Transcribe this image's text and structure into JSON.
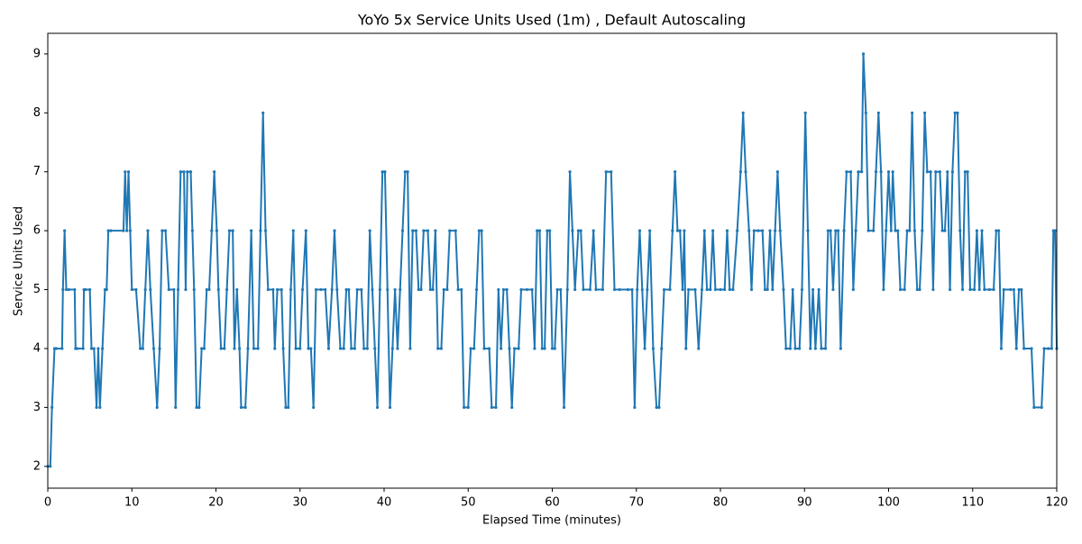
{
  "chart_data": {
    "type": "line",
    "title": "YoYo 5x Service Units Used (1m) , Default Autoscaling",
    "x_label": "Elapsed Time (minutes)",
    "y_label": "Service Units Used",
    "xlim": [
      0,
      120
    ],
    "ylim": [
      1.63,
      9.35
    ],
    "xticks": [
      0,
      10,
      20,
      30,
      40,
      50,
      60,
      70,
      80,
      90,
      100,
      110,
      120
    ],
    "yticks": [
      2,
      3,
      4,
      5,
      6,
      7,
      8,
      9
    ],
    "grid": false,
    "x": [
      0,
      0.3,
      0.5,
      0.8,
      1,
      1.7,
      1.8,
      2,
      2.2,
      2.5,
      3.2,
      3.3,
      3.5,
      4.2,
      4.3,
      4.5,
      5,
      5.2,
      5.5,
      5.8,
      6,
      6.2,
      6.5,
      6.8,
      7,
      7.2,
      7.5,
      9,
      9.2,
      9.4,
      9.6,
      9.8,
      10,
      10.5,
      11,
      11.3,
      11.6,
      11.9,
      12.2,
      12.6,
      13,
      13.3,
      13.6,
      14,
      14.4,
      15,
      15.2,
      15.5,
      15.8,
      16.2,
      16.4,
      16.6,
      17,
      17.2,
      17.4,
      17.7,
      18,
      18.3,
      18.6,
      18.9,
      19.2,
      19.5,
      19.8,
      20.1,
      20.3,
      20.6,
      21,
      21.3,
      21.6,
      22,
      22.2,
      22.5,
      22.8,
      23,
      23.5,
      23.8,
      24.2,
      24.5,
      25,
      25.3,
      25.6,
      25.9,
      26.2,
      26.8,
      27,
      27.3,
      27.8,
      28,
      28.3,
      28.6,
      28.9,
      29.2,
      29.5,
      30,
      30.3,
      30.7,
      31,
      31.3,
      31.6,
      31.9,
      32.5,
      33,
      33.4,
      33.8,
      34.1,
      34.4,
      34.8,
      35.2,
      35.5,
      35.8,
      36.1,
      36.5,
      36.8,
      37.3,
      37.6,
      38,
      38.3,
      38.6,
      38.9,
      39.2,
      39.5,
      39.8,
      40.1,
      40.4,
      40.7,
      41,
      41.3,
      41.6,
      41.9,
      42.2,
      42.5,
      42.8,
      43.1,
      43.4,
      43.8,
      44.1,
      44.4,
      44.7,
      45.2,
      45.5,
      45.8,
      46.1,
      46.4,
      46.8,
      47.1,
      47.5,
      47.8,
      48.5,
      48.8,
      49.2,
      49.5,
      50,
      50.3,
      50.7,
      51,
      51.3,
      51.6,
      51.9,
      52.5,
      52.8,
      53.3,
      53.6,
      53.9,
      54.2,
      54.6,
      54.9,
      55.2,
      55.5,
      56,
      56.3,
      57,
      57.6,
      57.9,
      58.2,
      58.5,
      58.8,
      59.1,
      59.4,
      59.7,
      60,
      60.3,
      60.6,
      61,
      61.4,
      61.8,
      62.1,
      62.4,
      62.7,
      63.1,
      63.4,
      63.7,
      64.5,
      64.9,
      65.2,
      66,
      66.4,
      67,
      67.4,
      68,
      69,
      69.5,
      69.8,
      70.1,
      70.4,
      70.7,
      71,
      71.3,
      71.6,
      72,
      72.4,
      72.7,
      73,
      73.3,
      74,
      74.3,
      74.6,
      74.9,
      75.2,
      75.5,
      75.7,
      75.9,
      76.2,
      77,
      77.4,
      77.8,
      78.1,
      78.4,
      78.8,
      79.1,
      79.4,
      80,
      80.5,
      80.8,
      81.1,
      81.5,
      82,
      82.4,
      82.7,
      83,
      83.4,
      83.7,
      84,
      84.5,
      85,
      85.3,
      85.6,
      85.9,
      86.2,
      86.5,
      86.8,
      87.1,
      87.5,
      87.8,
      88.3,
      88.6,
      88.9,
      89.4,
      89.7,
      90.1,
      90.4,
      90.7,
      91,
      91.3,
      91.7,
      92,
      92.5,
      92.8,
      93.1,
      93.4,
      93.7,
      94,
      94.3,
      94.7,
      95,
      95.5,
      95.8,
      96.1,
      96.4,
      96.8,
      97,
      97.3,
      97.6,
      98.2,
      98.5,
      98.8,
      99.1,
      99.4,
      99.7,
      100,
      100.3,
      100.5,
      100.8,
      101.1,
      101.4,
      101.9,
      102.2,
      102.5,
      102.8,
      103.1,
      103.4,
      103.7,
      104,
      104.3,
      104.6,
      105,
      105.3,
      105.6,
      106.1,
      106.4,
      106.7,
      107,
      107.3,
      107.6,
      107.9,
      108.2,
      108.5,
      108.8,
      109.1,
      109.4,
      109.7,
      110.2,
      110.5,
      110.8,
      111.1,
      111.4,
      112,
      112.5,
      112.8,
      113.1,
      113.4,
      113.7,
      114.5,
      114.9,
      115.2,
      115.5,
      115.8,
      116.1,
      117,
      117.3,
      118.2,
      118.5,
      119,
      119.4,
      119.6,
      119.8,
      120
    ],
    "series": [
      {
        "color": "#1f77b4",
        "values": [
          2,
          2,
          3,
          4,
          4,
          4,
          5,
          6,
          5,
          5,
          5,
          4,
          4,
          4,
          5,
          5,
          5,
          4,
          4,
          3,
          4,
          3,
          4,
          5,
          5,
          6,
          6,
          6,
          7,
          6,
          7,
          6,
          5,
          5,
          4,
          4,
          5,
          6,
          5,
          4,
          3,
          4,
          6,
          6,
          5,
          5,
          3,
          5,
          7,
          7,
          5,
          7,
          7,
          6,
          5,
          3,
          3,
          4,
          4,
          5,
          5,
          6,
          7,
          6,
          5,
          4,
          4,
          5,
          6,
          6,
          4,
          5,
          4,
          3,
          3,
          4,
          6,
          4,
          4,
          6,
          8,
          6,
          5,
          5,
          4,
          5,
          5,
          4,
          3,
          3,
          5,
          6,
          4,
          4,
          5,
          6,
          4,
          4,
          3,
          5,
          5,
          5,
          4,
          5,
          6,
          5,
          4,
          4,
          5,
          5,
          4,
          4,
          5,
          5,
          4,
          4,
          6,
          5,
          4,
          3,
          5,
          7,
          7,
          5,
          3,
          4,
          5,
          4,
          5,
          6,
          7,
          7,
          4,
          6,
          6,
          5,
          5,
          6,
          6,
          5,
          5,
          6,
          4,
          4,
          5,
          5,
          6,
          6,
          5,
          5,
          3,
          3,
          4,
          4,
          5,
          6,
          6,
          4,
          4,
          3,
          3,
          5,
          4,
          5,
          5,
          4,
          3,
          4,
          4,
          5,
          5,
          5,
          4,
          6,
          6,
          4,
          4,
          6,
          6,
          4,
          4,
          5,
          5,
          3,
          5,
          7,
          6,
          5,
          6,
          6,
          5,
          5,
          6,
          5,
          5,
          7,
          7,
          5,
          5,
          5,
          5,
          3,
          5,
          6,
          5,
          4,
          5,
          6,
          4,
          3,
          3,
          4,
          5,
          5,
          6,
          7,
          6,
          6,
          5,
          6,
          4,
          5,
          5,
          4,
          5,
          6,
          5,
          5,
          6,
          5,
          5,
          5,
          6,
          5,
          5,
          6,
          7,
          8,
          7,
          6,
          5,
          6,
          6,
          6,
          5,
          5,
          6,
          5,
          6,
          7,
          6,
          5,
          4,
          4,
          5,
          4,
          4,
          5,
          8,
          6,
          4,
          5,
          4,
          5,
          4,
          4,
          6,
          6,
          5,
          6,
          6,
          4,
          6,
          7,
          7,
          5,
          6,
          7,
          7,
          9,
          8,
          6,
          6,
          7,
          8,
          7,
          5,
          6,
          7,
          6,
          7,
          6,
          6,
          5,
          5,
          6,
          6,
          8,
          6,
          5,
          5,
          6,
          8,
          7,
          7,
          5,
          7,
          7,
          6,
          6,
          7,
          5,
          7,
          8,
          8,
          6,
          5,
          7,
          7,
          5,
          5,
          6,
          5,
          6,
          5,
          5,
          5,
          6,
          6,
          4,
          5,
          5,
          5,
          4,
          5,
          5,
          4,
          4,
          3,
          3,
          4,
          4,
          4,
          6,
          6,
          4
        ]
      }
    ]
  }
}
